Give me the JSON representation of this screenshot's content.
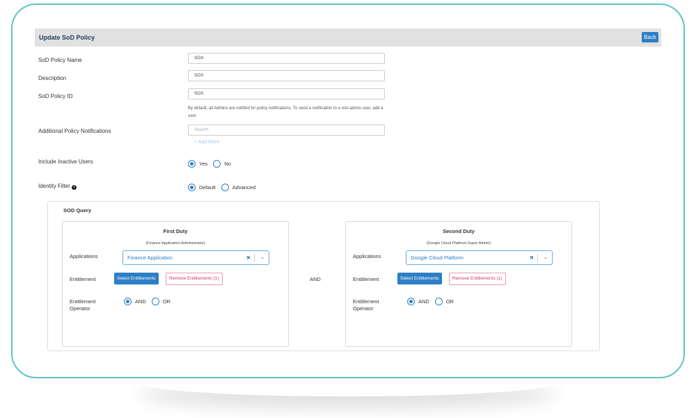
{
  "header": {
    "title": "Update SoD Policy",
    "back_label": "Back"
  },
  "form": {
    "policy_name": {
      "label": "SoD Policy Name",
      "value": "SOX"
    },
    "description": {
      "label": "Description",
      "value": "SOX"
    },
    "policy_id": {
      "label": "SoD Policy ID",
      "value": "SOX"
    },
    "notifications": {
      "label": "Additional Policy Notifications",
      "note": "By default, all Admins are notified for policy notifications. To send a notification to a non-admin user, add a user.",
      "placeholder": "Search",
      "add_more": "+ Add More"
    },
    "inactive": {
      "label": "Include Inactive Users",
      "options": [
        "Yes",
        "No"
      ],
      "selected": "Yes"
    },
    "identity_filter": {
      "label": "Identity Filter",
      "options": [
        "Default",
        "Advanced"
      ],
      "selected": "Default"
    }
  },
  "query": {
    "title": "SOD Query",
    "joiner": "AND",
    "duties": [
      {
        "title": "First Duty",
        "subtitle": "(Finance Application.Administrator)",
        "applications_label": "Applications",
        "application": "Finance Application",
        "entitlement_label": "Entitlement",
        "select_label": "Select Entitlements",
        "remove_label": "Remove Entitlements (1)",
        "operator_label": "Entitlement Operator",
        "operators": [
          "AND",
          "OR"
        ],
        "selected": "AND"
      },
      {
        "title": "Second Duty",
        "subtitle": "(Google Cloud Platform.Super Admin)",
        "applications_label": "Applications",
        "application": "Google Cloud Platform",
        "entitlement_label": "Entitlement",
        "select_label": "Select Entitlements",
        "remove_label": "Remove Entitlements (1)",
        "operator_label": "Entitlement Operator",
        "operators": [
          "AND",
          "OR"
        ],
        "selected": "AND"
      }
    ]
  },
  "colors": {
    "frame": "#5cc6c0",
    "primary": "#2d7ec4",
    "danger": "#d8336f",
    "header_bg": "#e1e1e1"
  }
}
